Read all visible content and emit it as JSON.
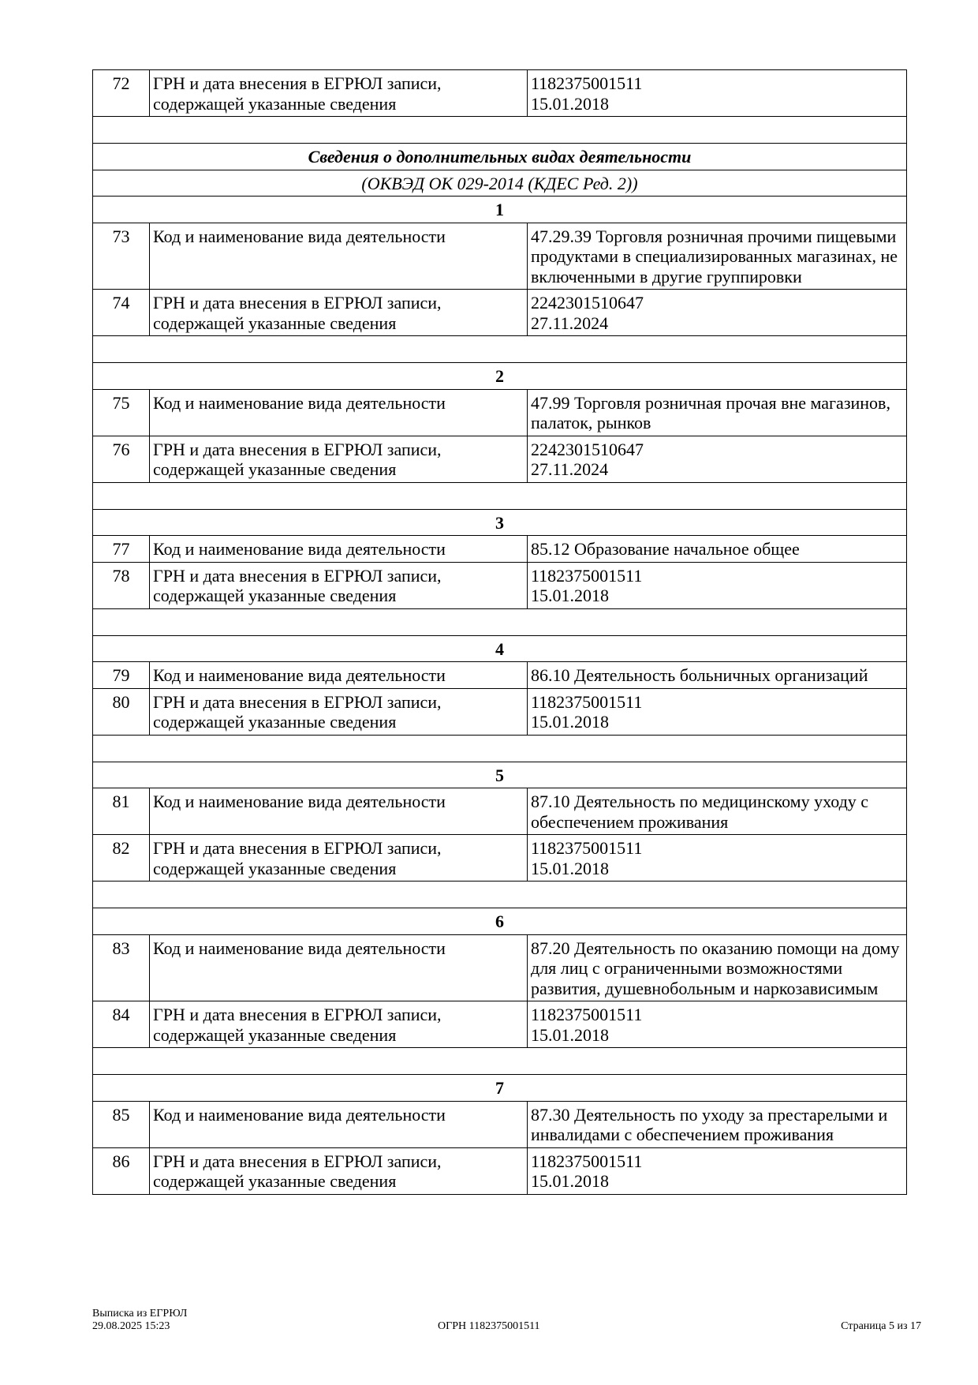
{
  "rows": [
    {
      "type": "data",
      "num": "72",
      "label": "ГРН и дата внесения в ЕГРЮЛ записи, содержащей указанные сведения",
      "value": [
        "1182375001511",
        "15.01.2018"
      ]
    },
    {
      "type": "empty"
    },
    {
      "type": "heading",
      "text": "Сведения о дополнительных видах деятельности"
    },
    {
      "type": "subheading",
      "text": "(ОКВЭД ОК 029-2014 (КДЕС Ред. 2))"
    },
    {
      "type": "index",
      "text": "1"
    },
    {
      "type": "data",
      "num": "73",
      "label": "Код и наименование вида деятельности",
      "value": [
        "47.29.39 Торговля розничная прочими пищевыми продуктами в специализированных магазинах, не включенными в другие группировки"
      ]
    },
    {
      "type": "data",
      "num": "74",
      "label": "ГРН и дата внесения в ЕГРЮЛ записи, содержащей указанные сведения",
      "value": [
        "2242301510647",
        "27.11.2024"
      ]
    },
    {
      "type": "empty"
    },
    {
      "type": "index",
      "text": "2"
    },
    {
      "type": "data",
      "num": "75",
      "label": "Код и наименование вида деятельности",
      "value": [
        "47.99 Торговля розничная прочая вне магазинов, палаток, рынков"
      ]
    },
    {
      "type": "data",
      "num": "76",
      "label": "ГРН и дата внесения в ЕГРЮЛ записи, содержащей указанные сведения",
      "value": [
        "2242301510647",
        "27.11.2024"
      ]
    },
    {
      "type": "empty"
    },
    {
      "type": "index",
      "text": "3"
    },
    {
      "type": "data",
      "num": "77",
      "label": "Код и наименование вида деятельности",
      "value": [
        "85.12 Образование начальное общее"
      ]
    },
    {
      "type": "data",
      "num": "78",
      "label": "ГРН и дата внесения в ЕГРЮЛ записи, содержащей указанные сведения",
      "value": [
        "1182375001511",
        "15.01.2018"
      ]
    },
    {
      "type": "empty"
    },
    {
      "type": "index",
      "text": "4"
    },
    {
      "type": "data",
      "num": "79",
      "label": "Код и наименование вида деятельности",
      "value": [
        "86.10 Деятельность больничных организаций"
      ]
    },
    {
      "type": "data",
      "num": "80",
      "label": "ГРН и дата внесения в ЕГРЮЛ записи, содержащей указанные сведения",
      "value": [
        "1182375001511",
        "15.01.2018"
      ]
    },
    {
      "type": "empty"
    },
    {
      "type": "index",
      "text": "5"
    },
    {
      "type": "data",
      "num": "81",
      "label": "Код и наименование вида деятельности",
      "value": [
        "87.10 Деятельность по медицинскому уходу с обеспечением проживания"
      ]
    },
    {
      "type": "data",
      "num": "82",
      "label": "ГРН и дата внесения в ЕГРЮЛ записи, содержащей указанные сведения",
      "value": [
        "1182375001511",
        "15.01.2018"
      ]
    },
    {
      "type": "empty"
    },
    {
      "type": "index",
      "text": "6"
    },
    {
      "type": "data",
      "num": "83",
      "label": "Код и наименование вида деятельности",
      "value": [
        "87.20 Деятельность по оказанию помощи на дому для лиц с ограниченными возможностями развития, душевнобольным и наркозависимым"
      ]
    },
    {
      "type": "data",
      "num": "84",
      "label": "ГРН и дата внесения в ЕГРЮЛ записи, содержащей указанные сведения",
      "value": [
        "1182375001511",
        "15.01.2018"
      ]
    },
    {
      "type": "empty"
    },
    {
      "type": "index",
      "text": "7"
    },
    {
      "type": "data",
      "num": "85",
      "label": "Код и наименование вида деятельности",
      "value": [
        "87.30 Деятельность по уходу за престарелыми и инвалидами с обеспечением проживания"
      ]
    },
    {
      "type": "data",
      "num": "86",
      "label": "ГРН и дата внесения в ЕГРЮЛ записи, содержащей указанные сведения",
      "value": [
        "1182375001511",
        "15.01.2018"
      ]
    }
  ],
  "footer": {
    "doc_title": "Выписка из ЕГРЮЛ",
    "datetime": "29.08.2025 15:23",
    "ogrn": "ОГРН 1182375001511",
    "page": "Страница 5 из 17"
  }
}
